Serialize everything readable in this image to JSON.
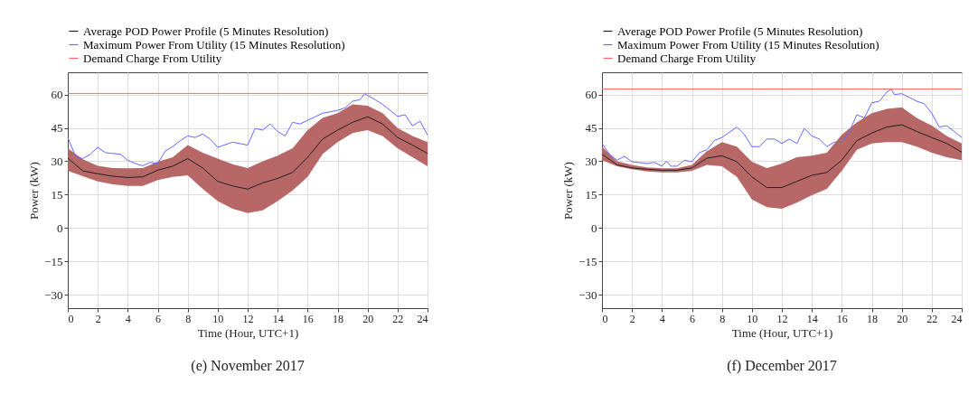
{
  "chart_data": [
    {
      "type": "line",
      "title": "(e) November 2017",
      "xlabel": "Time (Hour, UTC+1)",
      "ylabel": "Power (kW)",
      "xlim": [
        0,
        24
      ],
      "ylim": [
        -36,
        70
      ],
      "xticks": [
        0,
        2,
        4,
        6,
        8,
        10,
        12,
        14,
        16,
        18,
        20,
        22,
        24
      ],
      "yticks": [
        -30,
        -15,
        0,
        15,
        30,
        45,
        60
      ],
      "grid": true,
      "legend": "top",
      "series": [
        {
          "name": "Average POD Power Profile (5 Minutes Resolution)",
          "color": "#222222",
          "x": [
            0,
            1,
            2,
            3,
            4,
            5,
            6,
            7,
            8,
            9,
            10,
            11,
            12,
            13,
            14,
            15,
            16,
            17,
            18,
            19,
            20,
            21,
            22,
            23,
            24
          ],
          "values": [
            31.4,
            25.7,
            24.4,
            23.3,
            22.7,
            23,
            26,
            27.8,
            31.2,
            27,
            21,
            18.9,
            17.5,
            20.3,
            22.3,
            25,
            31.8,
            40,
            44,
            47.5,
            50,
            46.8,
            40.7,
            37.3,
            33.5
          ],
          "lower": [
            25.7,
            23.3,
            21,
            19.6,
            18.9,
            18.9,
            21.6,
            23,
            23.7,
            17.6,
            12.1,
            8.7,
            6.7,
            8,
            12.1,
            16.9,
            23,
            33.2,
            38.6,
            42.7,
            44,
            41.4,
            35.9,
            31.8,
            27.8
          ],
          "upper": [
            35.9,
            30.9,
            28,
            27,
            26.8,
            27,
            29.8,
            31.8,
            37.3,
            33.9,
            31.2,
            28.7,
            27,
            30,
            32.5,
            35.9,
            44,
            49.5,
            51.6,
            55.6,
            55,
            51.6,
            44.9,
            41.4,
            38.6
          ]
        },
        {
          "name": "Maximum Power From Utility (15 Minutes Resolution)",
          "color": "#6666ff",
          "x": [
            0,
            0.5,
            1,
            1.5,
            2,
            2.5,
            3,
            3.5,
            4,
            4.5,
            5,
            5.5,
            6,
            6.5,
            7,
            7.5,
            8,
            8.5,
            9,
            9.5,
            10,
            11,
            12,
            12.5,
            13,
            13.5,
            14,
            14.5,
            15,
            15.5,
            16,
            17,
            18,
            18.5,
            19,
            19.5,
            19.8,
            20.5,
            21,
            22,
            22.5,
            23,
            23.5,
            24
          ],
          "values": [
            40.7,
            32.5,
            31.2,
            33.2,
            36.3,
            33.9,
            33.5,
            33.2,
            30.5,
            29,
            28,
            29.5,
            29,
            34.6,
            36.6,
            39.3,
            41.4,
            40.7,
            42.3,
            40,
            36.3,
            38.6,
            37.3,
            44.8,
            44,
            46.8,
            43.4,
            41.4,
            47.5,
            46.8,
            48.4,
            51.6,
            52.9,
            54,
            57,
            57.7,
            60.4,
            57.7,
            55.6,
            50.2,
            50.9,
            46,
            48,
            41.8
          ]
        }
      ],
      "ref_lines": [
        {
          "axis": "y",
          "value": 60.5,
          "label": "Demand Charge From Utility",
          "color": "#ff6666"
        }
      ]
    },
    {
      "type": "line",
      "title": "(f) December 2017",
      "xlabel": "Time (Hour, UTC+1)",
      "ylabel": "Power (kW)",
      "xlim": [
        0,
        24
      ],
      "ylim": [
        -36,
        70
      ],
      "xticks": [
        0,
        2,
        4,
        6,
        8,
        10,
        12,
        14,
        16,
        18,
        20,
        22,
        24
      ],
      "yticks": [
        -30,
        -15,
        0,
        15,
        30,
        45,
        60
      ],
      "grid": true,
      "legend": "top",
      "series": [
        {
          "name": "Average POD Power Profile (5 Minutes Resolution)",
          "color": "#222222",
          "x": [
            0,
            1,
            2,
            3,
            4,
            5,
            6,
            7,
            8,
            9,
            10,
            11,
            12,
            13,
            14,
            15,
            16,
            17,
            18,
            19,
            20,
            21,
            22,
            23,
            24
          ],
          "values": [
            33.2,
            28.4,
            27,
            26.4,
            26,
            26,
            27,
            31.4,
            32.5,
            29.8,
            23,
            18.2,
            18.2,
            21,
            23.7,
            25,
            30.5,
            39.3,
            42.7,
            45.4,
            46.4,
            43.4,
            40.7,
            38,
            34.1
          ],
          "lower": [
            30.5,
            27.8,
            26.4,
            25.4,
            25,
            25,
            25.7,
            28.4,
            27.8,
            23,
            12.8,
            9.4,
            8.7,
            11.4,
            14.8,
            17.6,
            25.7,
            35.2,
            38,
            38.6,
            38.6,
            36.6,
            33.9,
            31.8,
            30.5
          ],
          "upper": [
            36.6,
            30,
            28.4,
            27.3,
            26.8,
            26.8,
            28.4,
            34.6,
            38.6,
            36.6,
            29.8,
            27,
            29,
            31.8,
            32.5,
            33.9,
            42,
            47.5,
            51.6,
            53.6,
            54.3,
            49.5,
            46,
            41.4,
            38
          ]
        },
        {
          "name": "Maximum Power From Utility (15 Minutes Resolution)",
          "color": "#6666ff",
          "x": [
            0,
            0.5,
            1,
            1.5,
            2,
            3,
            3.5,
            4,
            4.3,
            4.6,
            5,
            5.5,
            6,
            6.5,
            7,
            7.5,
            8,
            9,
            9.5,
            10,
            10.5,
            11,
            11.5,
            12,
            12.5,
            13,
            13.5,
            14,
            14.5,
            15,
            15.5,
            16,
            16.5,
            17,
            17.5,
            18,
            18.5,
            19,
            19.3,
            19.5,
            20,
            21,
            21.5,
            22,
            22.5,
            23,
            23.5,
            24
          ],
          "values": [
            38,
            33.2,
            30.5,
            32.2,
            29.8,
            29,
            29.5,
            27.8,
            30,
            27.8,
            27.8,
            30.5,
            29.8,
            33.9,
            35.2,
            39.3,
            40.7,
            45.4,
            42,
            36.6,
            36.6,
            40,
            40,
            38,
            40,
            38,
            44.8,
            41.4,
            40,
            36.6,
            38.6,
            38.6,
            43.4,
            50.9,
            49.5,
            56.3,
            57,
            61.1,
            62.4,
            60,
            60.4,
            57,
            55.9,
            51.6,
            45.4,
            46,
            43.4,
            40.7
          ]
        }
      ],
      "ref_lines": [
        {
          "axis": "y",
          "value": 62.5,
          "label": "Demand Charge From Utility",
          "color": "#ff6666"
        }
      ]
    }
  ]
}
